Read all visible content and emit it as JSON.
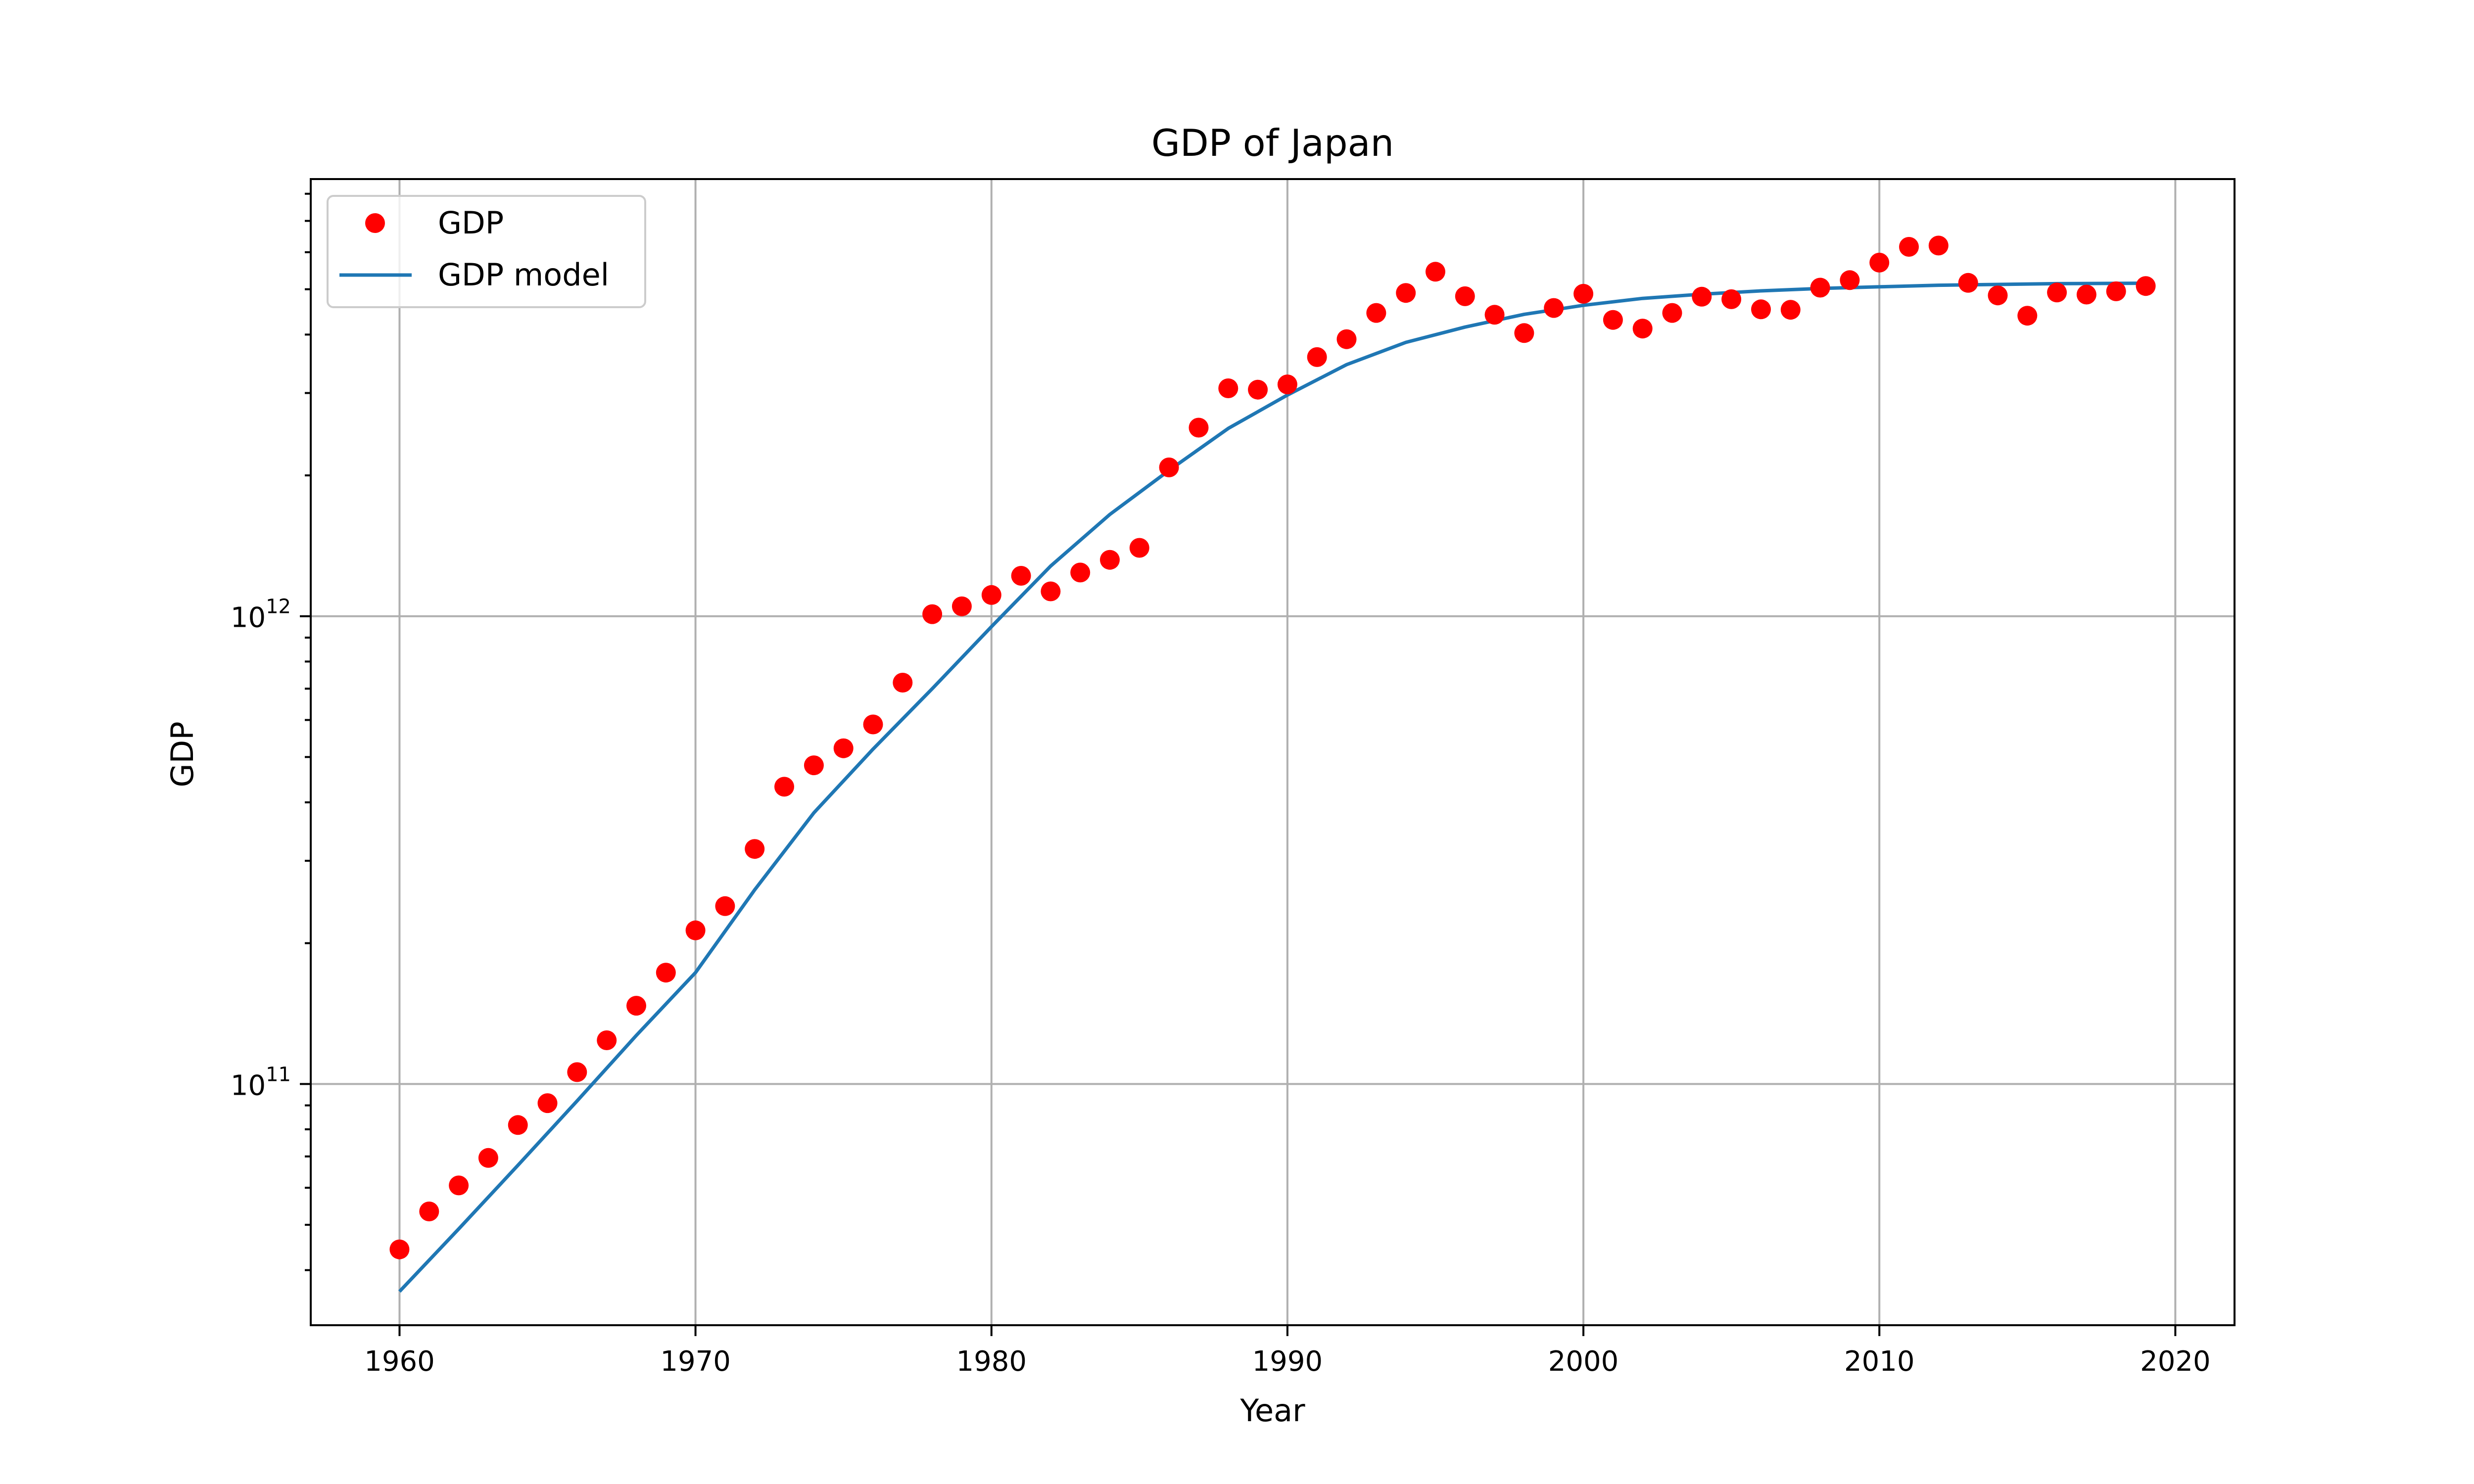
{
  "chart_data": {
    "type": "scatter",
    "title": "GDP of Japan",
    "xlabel": "Year",
    "ylabel": "GDP",
    "xlim": [
      1957,
      2022
    ],
    "ylim": [
      30500000000.0,
      8600000000000.0
    ],
    "yscale": "log",
    "grid": true,
    "legend_position": "top-left",
    "x_ticks": [
      1960,
      1970,
      1980,
      1990,
      2000,
      2010,
      2020
    ],
    "x_tick_labels": [
      "1960",
      "1970",
      "1980",
      "1990",
      "2000",
      "2010",
      "2020"
    ],
    "y_ticks": [
      100000000000.0,
      1000000000000.0
    ],
    "y_tick_labels": [
      {
        "base": "10",
        "exp": "11"
      },
      {
        "base": "10",
        "exp": "12"
      }
    ],
    "series": [
      {
        "name": "GDP",
        "kind": "scatter",
        "color": "#ff0000",
        "x": [
          1960,
          1961,
          1962,
          1963,
          1964,
          1965,
          1966,
          1967,
          1968,
          1969,
          1970,
          1971,
          1972,
          1973,
          1974,
          1975,
          1976,
          1977,
          1978,
          1979,
          1980,
          1981,
          1982,
          1983,
          1984,
          1985,
          1986,
          1987,
          1988,
          1989,
          1990,
          1991,
          1992,
          1993,
          1994,
          1995,
          1996,
          1997,
          1998,
          1999,
          2000,
          2001,
          2002,
          2003,
          2004,
          2005,
          2006,
          2007,
          2008,
          2009,
          2010,
          2011,
          2012,
          2013,
          2014,
          2015,
          2016,
          2017,
          2018,
          2019
        ],
        "y": [
          44300000000.0,
          53400000000.0,
          60700000000.0,
          69500000000.0,
          81700000000.0,
          91000000000.0,
          106000000000.0,
          124000000000.0,
          147000000000.0,
          173000000000.0,
          213000000000.0,
          240000000000.0,
          318000000000.0,
          432000000000.0,
          480000000000.0,
          522000000000.0,
          587000000000.0,
          721000000000.0,
          1010000000000.0,
          1050000000000.0,
          1110000000000.0,
          1220000000000.0,
          1130000000000.0,
          1240000000000.0,
          1320000000000.0,
          1400000000000.0,
          2080000000000.0,
          2530000000000.0,
          3070000000000.0,
          3050000000000.0,
          3130000000000.0,
          3580000000000.0,
          3910000000000.0,
          4450000000000.0,
          4910000000000.0,
          5450000000000.0,
          4830000000000.0,
          4410000000000.0,
          4030000000000.0,
          4560000000000.0,
          4890000000000.0,
          4300000000000.0,
          4120000000000.0,
          4450000000000.0,
          4820000000000.0,
          4760000000000.0,
          4530000000000.0,
          4520000000000.0,
          5040000000000.0,
          5230000000000.0,
          5700000000000.0,
          6160000000000.0,
          6200000000000.0,
          5160000000000.0,
          4850000000000.0,
          4390000000000.0,
          4920000000000.0,
          4870000000000.0,
          4950000000000.0,
          5080000000000.0
        ]
      },
      {
        "name": "GDP model",
        "kind": "line",
        "color": "#1f77b4",
        "x": [
          1960,
          1962,
          1964,
          1966,
          1968,
          1970,
          1972,
          1974,
          1976,
          1978,
          1980,
          1982,
          1984,
          1986,
          1988,
          1990,
          1992,
          1994,
          1996,
          1998,
          2000,
          2002,
          2004,
          2006,
          2008,
          2010,
          2012,
          2014,
          2016,
          2019
        ],
        "y": [
          36000000000.0,
          49000000000.0,
          67000000000.0,
          92000000000.0,
          127000000000.0,
          173000000000.0,
          260000000000.0,
          380000000000.0,
          520000000000.0,
          700000000000.0,
          950000000000.0,
          1280000000000.0,
          1650000000000.0,
          2050000000000.0,
          2520000000000.0,
          2970000000000.0,
          3450000000000.0,
          3850000000000.0,
          4150000000000.0,
          4420000000000.0,
          4620000000000.0,
          4780000000000.0,
          4880000000000.0,
          4960000000000.0,
          5020000000000.0,
          5060000000000.0,
          5100000000000.0,
          5120000000000.0,
          5140000000000.0,
          5150000000000.0
        ]
      }
    ]
  }
}
